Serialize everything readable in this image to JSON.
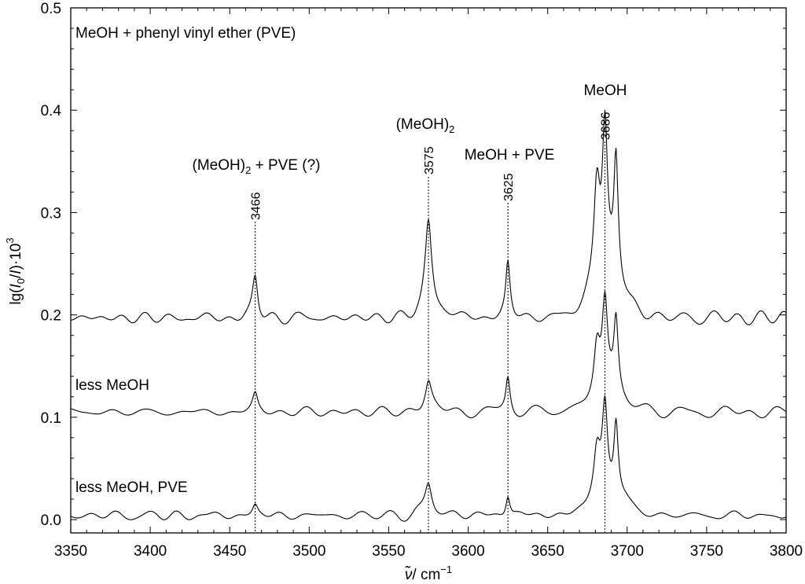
{
  "chart_data": {
    "type": "line",
    "title": "MeOH + phenyl vinyl ether (PVE)",
    "xlabel_symbol": "ν̃",
    "xlabel_unit": "/ cm",
    "xlabel_exp": "−1",
    "ylabel_prefix": "lg(",
    "ylabel_I0": "I",
    "ylabel_sub0": "0",
    "ylabel_slash": "/",
    "ylabel_I": "I",
    "ylabel_suffix": ")·10",
    "ylabel_exp": "3",
    "xlim": [
      3350,
      3800
    ],
    "ylim": [
      -0.013,
      0.5
    ],
    "x_ticks": [
      "3350",
      "3400",
      "3450",
      "3500",
      "3550",
      "3600",
      "3650",
      "3700",
      "3750",
      "3800"
    ],
    "y_ticks": [
      "0.0",
      "0.1",
      "0.2",
      "0.3",
      "0.4",
      "0.5"
    ],
    "grid": false,
    "series": [
      {
        "name": "",
        "baseline": 0.197,
        "heights": [
          0.04,
          0.085,
          0.053,
          0.098,
          0.143,
          0.115
        ],
        "noise": 0.005
      },
      {
        "name": "less MeOH",
        "baseline": 0.105,
        "heights": [
          0.017,
          0.027,
          0.035,
          0.048,
          0.08,
          0.068
        ],
        "noise": 0.005
      },
      {
        "name": "less MeOH, PVE",
        "baseline": 0.004,
        "heights": [
          0.01,
          0.028,
          0.021,
          0.042,
          0.083,
          0.07
        ],
        "noise": 0.004
      }
    ],
    "annotations": [
      {
        "wavenumber": 3466,
        "label": "3466",
        "species": "(MeOH)",
        "species_sub": "2",
        "species_suffix": " + PVE (?)"
      },
      {
        "wavenumber": 3575,
        "label": "3575",
        "species": "(MeOH)",
        "species_sub": "2",
        "species_suffix": ""
      },
      {
        "wavenumber": 3625,
        "label": "3625",
        "species": "MeOH + PVE",
        "species_sub": "",
        "species_suffix": ""
      },
      {
        "wavenumber": 3686,
        "label": "3686",
        "species": "MeOH",
        "species_sub": "",
        "species_suffix": ""
      }
    ]
  }
}
